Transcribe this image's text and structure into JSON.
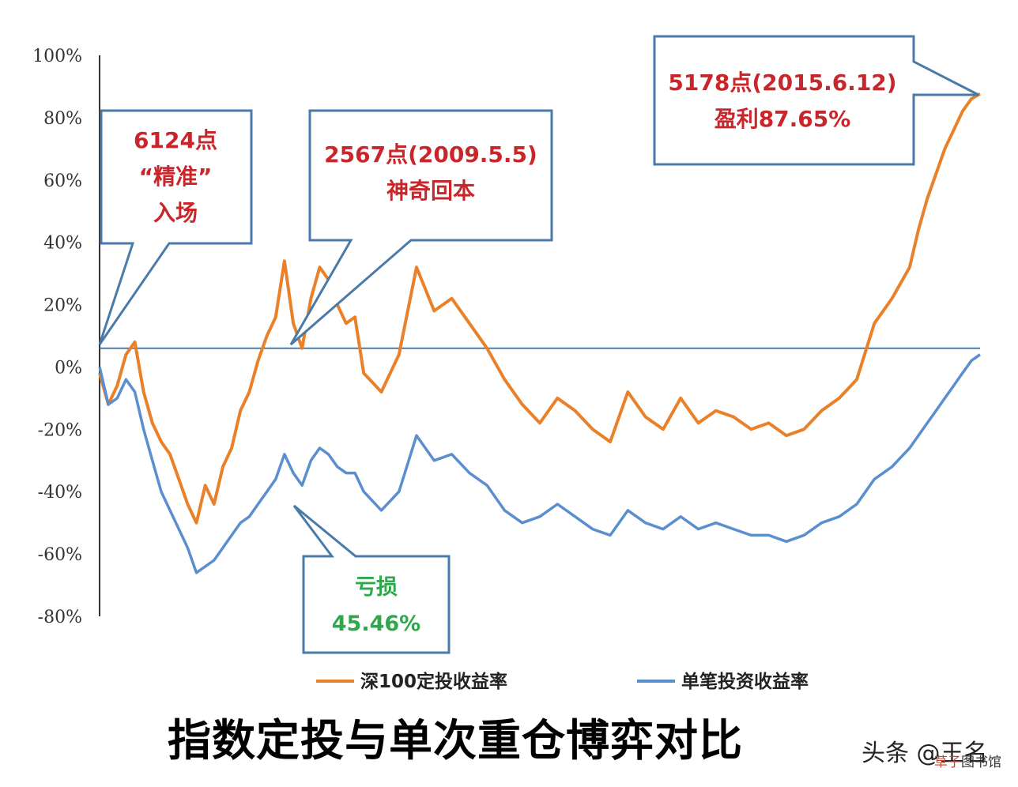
{
  "page_title": "指数定投与单次重仓博弈对比",
  "watermark": "头条 @王名",
  "corner_mark": {
    "highlight": "草子",
    "rest": "图书馆"
  },
  "colors": {
    "dingtou": "#e8812a",
    "single": "#5b8ecf",
    "baseline": "#4f7aa8",
    "callout_border": "#4a7aa8",
    "red_text": "#c8262b",
    "green_text": "#2ea84a"
  },
  "callouts": {
    "entry": {
      "lines": [
        "6124点",
        "“精准”",
        "入场"
      ]
    },
    "breakeven": {
      "lines": [
        "2567点(2009.5.5)",
        "神奇回本"
      ]
    },
    "profit": {
      "lines": [
        "5178点(2015.6.12)",
        "盈利87.65%"
      ]
    },
    "loss": {
      "lines": [
        "亏损",
        "45.46%"
      ]
    }
  },
  "chart_data": {
    "type": "line",
    "title": "",
    "xlabel": "",
    "ylabel": "",
    "ylim": [
      -80,
      100
    ],
    "yticks": [
      100,
      80,
      60,
      40,
      20,
      0,
      -20,
      -40,
      -60,
      -80
    ],
    "ytick_labels": [
      "100%",
      "80%",
      "60%",
      "40%",
      "20%",
      "0%",
      "-20%",
      "-40%",
      "-60%",
      "-80%"
    ],
    "x_range": [
      0,
      100
    ],
    "reference_line_y": 6,
    "legend": {
      "position": "bottom"
    },
    "series": [
      {
        "name": "深100定投收益率",
        "color_key": "dingtou",
        "x": [
          0,
          1,
          2,
          3,
          4,
          5,
          6,
          7,
          8,
          9,
          10,
          11,
          12,
          13,
          14,
          15,
          16,
          17,
          18,
          19,
          20,
          21,
          22,
          23,
          24,
          25,
          26,
          27,
          28,
          29,
          30,
          32,
          34,
          36,
          38,
          40,
          42,
          44,
          46,
          48,
          50,
          52,
          54,
          56,
          58,
          60,
          62,
          64,
          66,
          68,
          70,
          72,
          74,
          76,
          78,
          80,
          82,
          84,
          86,
          88,
          90,
          92,
          93,
          94,
          95,
          96,
          97,
          98,
          99,
          100
        ],
        "y": [
          -2,
          -12,
          -6,
          4,
          8,
          -8,
          -18,
          -24,
          -28,
          -36,
          -44,
          -50,
          -38,
          -44,
          -32,
          -26,
          -14,
          -8,
          2,
          10,
          16,
          34,
          14,
          6,
          22,
          32,
          28,
          20,
          14,
          16,
          -2,
          -8,
          4,
          32,
          18,
          22,
          14,
          6,
          -4,
          -12,
          -18,
          -10,
          -14,
          -20,
          -24,
          -8,
          -16,
          -20,
          -10,
          -18,
          -14,
          -16,
          -20,
          -18,
          -22,
          -20,
          -14,
          -10,
          -4,
          14,
          22,
          32,
          44,
          54,
          62,
          70,
          76,
          82,
          86,
          87.65
        ]
      },
      {
        "name": "单笔投资收益率",
        "color_key": "single",
        "x": [
          0,
          1,
          2,
          3,
          4,
          5,
          6,
          7,
          8,
          9,
          10,
          11,
          12,
          13,
          14,
          15,
          16,
          17,
          18,
          19,
          20,
          21,
          22,
          23,
          24,
          25,
          26,
          27,
          28,
          29,
          30,
          32,
          34,
          36,
          38,
          40,
          42,
          44,
          46,
          48,
          50,
          52,
          54,
          56,
          58,
          60,
          62,
          64,
          66,
          68,
          70,
          72,
          74,
          76,
          78,
          80,
          82,
          84,
          86,
          88,
          90,
          92,
          93,
          94,
          95,
          96,
          97,
          98,
          99,
          100
        ],
        "y": [
          0,
          -12,
          -10,
          -4,
          -8,
          -20,
          -30,
          -40,
          -46,
          -52,
          -58,
          -66,
          -64,
          -62,
          -58,
          -54,
          -50,
          -48,
          -44,
          -40,
          -36,
          -28,
          -34,
          -38,
          -30,
          -26,
          -28,
          -32,
          -34,
          -34,
          -40,
          -46,
          -40,
          -22,
          -30,
          -28,
          -34,
          -38,
          -46,
          -50,
          -48,
          -44,
          -48,
          -52,
          -54,
          -46,
          -50,
          -52,
          -48,
          -52,
          -50,
          -52,
          -54,
          -54,
          -56,
          -54,
          -50,
          -48,
          -44,
          -36,
          -32,
          -26,
          -22,
          -18,
          -14,
          -10,
          -6,
          -2,
          2,
          4
        ]
      }
    ]
  }
}
